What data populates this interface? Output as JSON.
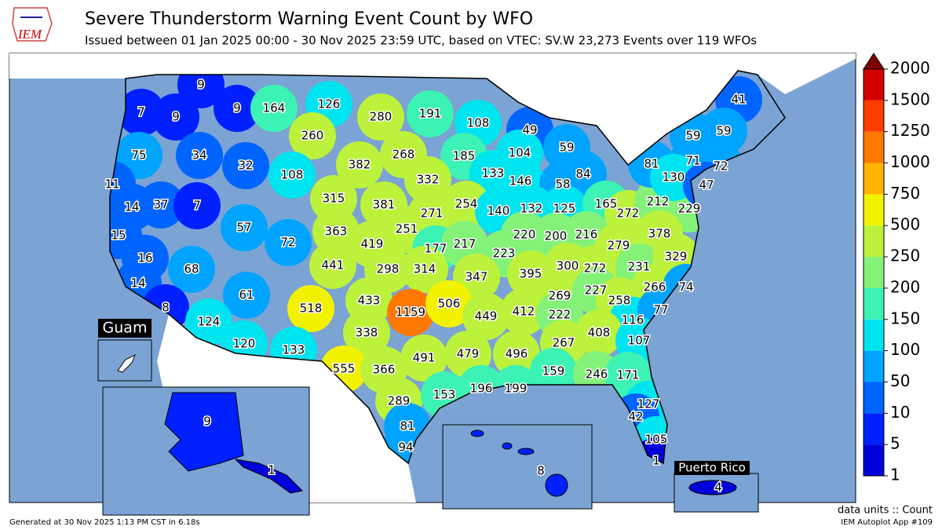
{
  "chart_data": {
    "type": "choropleth",
    "title": "Severe Thunderstorm Warning Event Count by WFO",
    "subtitle": "Issued between 01 Jan 2025 00:00 - 30 Nov 2025 23:59 UTC, based on VTEC: SV.W   23,273 Events over 119 WFOs",
    "logo": "IEM",
    "values": [
      9,
      7,
      9,
      9,
      164,
      126,
      280,
      191,
      108,
      49,
      260,
      75,
      34,
      32,
      59,
      104,
      185,
      268,
      382,
      108,
      11,
      14,
      37,
      7,
      133,
      332,
      146,
      58,
      84,
      315,
      381,
      271,
      254,
      140,
      132,
      125,
      165,
      272,
      212,
      229,
      57,
      15,
      363,
      419,
      251,
      177,
      217,
      220,
      200,
      216,
      279,
      378,
      72,
      16,
      441,
      298,
      314,
      223,
      347,
      395,
      300,
      272,
      231,
      329,
      68,
      14,
      61,
      518,
      433,
      1159,
      506,
      449,
      412,
      269,
      227,
      258,
      266,
      74,
      8,
      124,
      338,
      222,
      116,
      77,
      408,
      120,
      133,
      491,
      479,
      496,
      267,
      107,
      555,
      366,
      159,
      246,
      171,
      289,
      153,
      196,
      199,
      127,
      42,
      81,
      105,
      94,
      1,
      41,
      59,
      59,
      71,
      72,
      81,
      130,
      47,
      9,
      1,
      8,
      4
    ],
    "insets": [
      "Guam",
      "Puerto Rico"
    ],
    "colorbar": {
      "bounds": [
        1,
        5,
        10,
        50,
        100,
        150,
        200,
        250,
        500,
        750,
        1000,
        1250,
        1500,
        2000
      ],
      "colors": [
        "#0000d8",
        "#0020ff",
        "#0064ff",
        "#00a4ff",
        "#00e4f0",
        "#3cf2b4",
        "#84f278",
        "#bcf23c",
        "#f2f200",
        "#ffb400",
        "#ff7800",
        "#ff3c00",
        "#d40000"
      ],
      "extend_color": "#800000"
    },
    "units_label": "data units :: Count",
    "footer_left": "Generated at 30 Nov 2025 1:13 PM CST in 6.18s",
    "footer_right": "IEM Autoplot App #109"
  }
}
